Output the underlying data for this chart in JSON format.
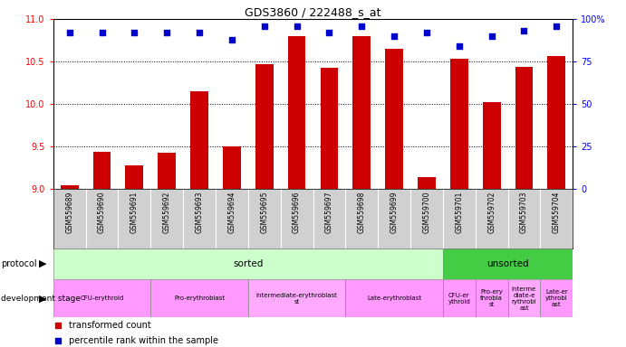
{
  "title": "GDS3860 / 222488_s_at",
  "samples": [
    "GSM559689",
    "GSM559690",
    "GSM559691",
    "GSM559692",
    "GSM559693",
    "GSM559694",
    "GSM559695",
    "GSM559696",
    "GSM559697",
    "GSM559698",
    "GSM559699",
    "GSM559700",
    "GSM559701",
    "GSM559702",
    "GSM559703",
    "GSM559704"
  ],
  "bar_values": [
    9.05,
    9.44,
    9.28,
    9.43,
    10.15,
    9.5,
    10.47,
    10.8,
    10.43,
    10.8,
    10.65,
    9.14,
    10.53,
    10.02,
    10.44,
    10.57
  ],
  "percentile_values": [
    92,
    92,
    92,
    92,
    92,
    88,
    96,
    96,
    92,
    96,
    90,
    92,
    84,
    90,
    93,
    96
  ],
  "bar_color": "#cc0000",
  "dot_color": "#0000cc",
  "ylim_left": [
    9.0,
    11.0
  ],
  "ylim_right": [
    0,
    100
  ],
  "yticks_left": [
    9.0,
    9.5,
    10.0,
    10.5,
    11.0
  ],
  "yticks_right": [
    0,
    25,
    50,
    75,
    100
  ],
  "protocol_sorted_label": "sorted",
  "protocol_unsorted_label": "unsorted",
  "protocol_sorted_color": "#ccffcc",
  "protocol_unsorted_color": "#44cc44",
  "protocol_sorted_samples": 12,
  "protocol_unsorted_samples": 4,
  "dev_groups": [
    {
      "label": "CFU-erythroid",
      "start": 0,
      "end": 2,
      "color": "#ff99ff"
    },
    {
      "label": "Pro-erythroblast",
      "start": 3,
      "end": 5,
      "color": "#ff99ff"
    },
    {
      "label": "Intermediate-erythroblast\nst",
      "start": 6,
      "end": 8,
      "color": "#ffaaff"
    },
    {
      "label": "Late-erythroblast",
      "start": 9,
      "end": 11,
      "color": "#ff99ff"
    },
    {
      "label": "CFU-er\nythroid",
      "start": 12,
      "end": 12,
      "color": "#ff99ff"
    },
    {
      "label": "Pro-ery\nthrobla\nst",
      "start": 13,
      "end": 13,
      "color": "#ff99ff"
    },
    {
      "label": "Interme\ndiate-e\nrythrobl\nast",
      "start": 14,
      "end": 14,
      "color": "#ffaaff"
    },
    {
      "label": "Late-er\nythrobl\nast",
      "start": 15,
      "end": 15,
      "color": "#ff99ff"
    }
  ],
  "legend_red": "transformed count",
  "legend_blue": "percentile rank within the sample",
  "label_protocol": "protocol",
  "label_devstage": "development stage",
  "xlabels_bg": "#d0d0d0",
  "bar_width": 0.55
}
